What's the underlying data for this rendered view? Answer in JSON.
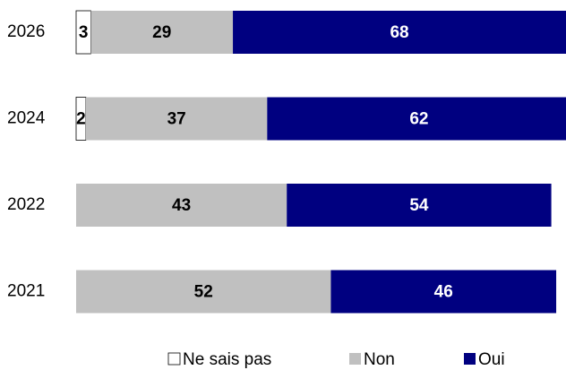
{
  "chart_data": {
    "type": "stacked-bar-horizontal",
    "categories": [
      "2026",
      "2024",
      "2022",
      "2021"
    ],
    "series": [
      {
        "name": "Ne sais pas",
        "color": "#ffffff",
        "values": [
          3,
          2,
          null,
          null
        ]
      },
      {
        "name": "Non",
        "color": "#c0c0c0",
        "values": [
          29,
          37,
          43,
          52
        ]
      },
      {
        "name": "Oui",
        "color": "#000080",
        "values": [
          68,
          62,
          54,
          46
        ]
      }
    ],
    "xlim": [
      0,
      100
    ]
  }
}
